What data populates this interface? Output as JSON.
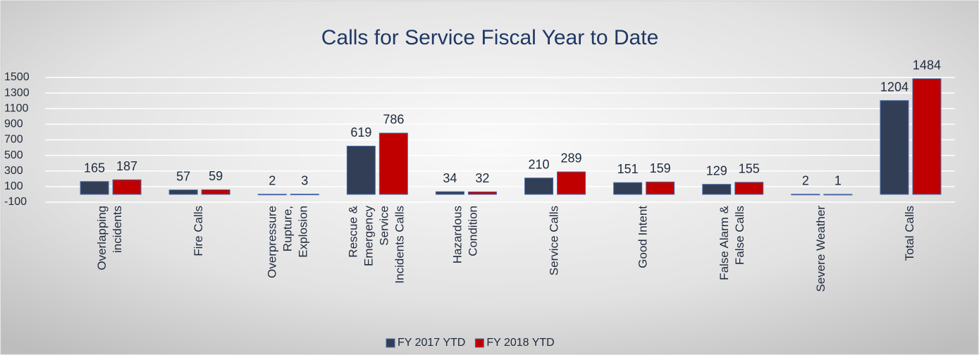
{
  "chart_data": {
    "type": "bar",
    "title": "Calls for Service Fiscal Year to Date",
    "categories": [
      "Overlapping incidents",
      "Fire Calls",
      "Overpressure Rupture, Explosion",
      "Rescue & Emergency Service Incidents Calls",
      "Hazardous Condition",
      "Service Calls",
      "Good Intent",
      "False Alarm & False Calls",
      "Severe Weather",
      "Total Calls"
    ],
    "series": [
      {
        "name": "FY 2017 YTD",
        "color": "#323e55",
        "values": [
          165,
          57,
          2,
          619,
          34,
          210,
          151,
          129,
          2,
          1204
        ]
      },
      {
        "name": "FY 2018 YTD",
        "color": "#c00000",
        "values": [
          187,
          59,
          3,
          786,
          32,
          289,
          159,
          155,
          1,
          1484
        ]
      }
    ],
    "ylim": [
      -100,
      1500
    ],
    "yticks": [
      -100,
      100,
      300,
      500,
      700,
      900,
      1100,
      1300,
      1500
    ],
    "grid": true,
    "legend": "bottom"
  }
}
